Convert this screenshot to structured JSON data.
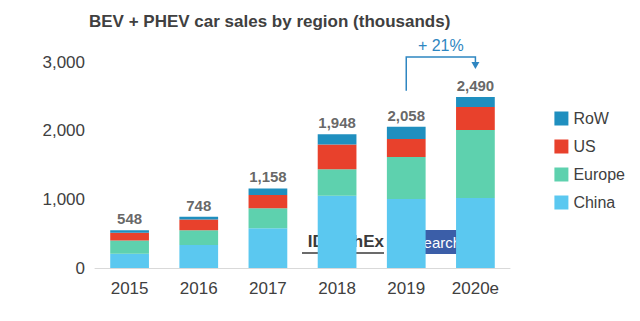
{
  "chart_data": {
    "type": "bar",
    "title": "BEV + PHEV car sales by region (thousands)",
    "categories": [
      "2015",
      "2016",
      "2017",
      "2018",
      "2019",
      "2020e"
    ],
    "stacked": true,
    "series": [
      {
        "name": "China",
        "color": "#5bc8f0",
        "values": [
          207,
          336,
          579,
          1053,
          1006,
          1019
        ]
      },
      {
        "name": "Europe",
        "color": "#5ed1ae",
        "values": [
          193,
          212,
          290,
          385,
          610,
          990
        ]
      },
      {
        "name": "US",
        "color": "#e8412c",
        "values": [
          115,
          160,
          195,
          360,
          262,
          334
        ]
      },
      {
        "name": "RoW",
        "color": "#1f8fbf",
        "values": [
          33,
          40,
          94,
          150,
          180,
          147
        ]
      }
    ],
    "totals": [
      548,
      748,
      1158,
      1948,
      2058,
      2490
    ],
    "total_labels": [
      "548",
      "748",
      "1,158",
      "1,948",
      "2,058",
      "2,490"
    ],
    "ylim": [
      0,
      3000
    ],
    "yticks": [
      0,
      {
        "value": 1000,
        "label": "1,000"
      },
      {
        "value": 2000,
        "label": "2,000"
      },
      {
        "value": 3000,
        "label": "3,000"
      }
    ],
    "grid": false,
    "legend": "right",
    "annotations": [
      {
        "text": "+ 21%",
        "from": "2019",
        "to": "2020e"
      },
      {
        "text": "IDTechEx"
      },
      {
        "text": "Research"
      }
    ]
  }
}
